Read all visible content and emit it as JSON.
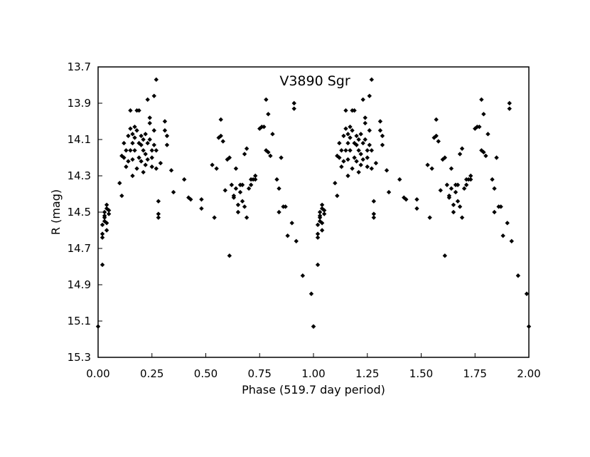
{
  "chart_data": {
    "type": "scatter",
    "title": "V3890 Sgr",
    "xlabel": "Phase (519.7 day period)",
    "ylabel": "R (mag)",
    "xlim": [
      0.0,
      2.0
    ],
    "ylim": [
      13.7,
      15.3
    ],
    "y_inverted": true,
    "grid": false,
    "legend": "none",
    "marker": "diamond",
    "marker_color": "#000000",
    "x_ticks": [
      "0.00",
      "0.25",
      "0.50",
      "0.75",
      "1.00",
      "1.25",
      "1.50",
      "1.75",
      "2.00"
    ],
    "y_ticks": [
      "13.7",
      "13.9",
      "14.1",
      "14.3",
      "14.5",
      "14.7",
      "14.9",
      "15.1",
      "15.3"
    ],
    "series": [
      {
        "points": [
          [
            0.0,
            15.13
          ],
          [
            0.02,
            14.79
          ],
          [
            0.02,
            14.64
          ],
          [
            0.02,
            14.62
          ],
          [
            0.02,
            14.57
          ],
          [
            0.03,
            14.55
          ],
          [
            0.03,
            14.52
          ],
          [
            0.03,
            14.5
          ],
          [
            0.03,
            14.53
          ],
          [
            0.04,
            14.48
          ],
          [
            0.04,
            14.46
          ],
          [
            0.04,
            14.56
          ],
          [
            0.04,
            14.6
          ],
          [
            0.05,
            14.51
          ],
          [
            0.05,
            14.49
          ],
          [
            0.1,
            14.34
          ],
          [
            0.11,
            14.19
          ],
          [
            0.11,
            14.41
          ],
          [
            0.12,
            14.12
          ],
          [
            0.12,
            14.2
          ],
          [
            0.13,
            14.25
          ],
          [
            0.13,
            14.16
          ],
          [
            0.14,
            14.22
          ],
          [
            0.14,
            14.08
          ],
          [
            0.15,
            14.04
          ],
          [
            0.15,
            14.16
          ],
          [
            0.15,
            13.94
          ],
          [
            0.16,
            14.07
          ],
          [
            0.16,
            14.12
          ],
          [
            0.16,
            14.21
          ],
          [
            0.16,
            14.3
          ],
          [
            0.17,
            14.03
          ],
          [
            0.17,
            14.09
          ],
          [
            0.17,
            14.16
          ],
          [
            0.18,
            14.26
          ],
          [
            0.18,
            13.94
          ],
          [
            0.18,
            14.05
          ],
          [
            0.19,
            14.12
          ],
          [
            0.19,
            14.2
          ],
          [
            0.19,
            13.94
          ],
          [
            0.2,
            14.08
          ],
          [
            0.2,
            14.13
          ],
          [
            0.2,
            14.22
          ],
          [
            0.21,
            14.28
          ],
          [
            0.21,
            14.16
          ],
          [
            0.21,
            14.1
          ],
          [
            0.22,
            14.07
          ],
          [
            0.22,
            14.18
          ],
          [
            0.22,
            14.24
          ],
          [
            0.23,
            13.88
          ],
          [
            0.23,
            14.12
          ],
          [
            0.23,
            14.21
          ],
          [
            0.24,
            13.98
          ],
          [
            0.24,
            14.01
          ],
          [
            0.24,
            14.1
          ],
          [
            0.25,
            14.16
          ],
          [
            0.25,
            14.25
          ],
          [
            0.25,
            14.2
          ],
          [
            0.26,
            13.86
          ],
          [
            0.26,
            14.05
          ],
          [
            0.26,
            14.13
          ],
          [
            0.27,
            14.26
          ],
          [
            0.27,
            14.16
          ],
          [
            0.27,
            13.77
          ],
          [
            0.28,
            14.51
          ],
          [
            0.28,
            14.53
          ],
          [
            0.28,
            14.44
          ],
          [
            0.29,
            14.23
          ],
          [
            0.31,
            14.0
          ],
          [
            0.31,
            14.05
          ],
          [
            0.32,
            14.13
          ],
          [
            0.32,
            14.08
          ],
          [
            0.34,
            14.27
          ],
          [
            0.35,
            14.39
          ],
          [
            0.4,
            14.32
          ],
          [
            0.42,
            14.42
          ],
          [
            0.43,
            14.43
          ],
          [
            0.48,
            14.43
          ],
          [
            0.48,
            14.48
          ],
          [
            0.53,
            14.24
          ],
          [
            0.54,
            14.53
          ],
          [
            0.55,
            14.26
          ],
          [
            0.56,
            14.09
          ],
          [
            0.57,
            13.99
          ],
          [
            0.57,
            14.08
          ],
          [
            0.58,
            14.11
          ],
          [
            0.59,
            14.38
          ],
          [
            0.6,
            14.21
          ],
          [
            0.61,
            14.2
          ],
          [
            0.61,
            14.74
          ],
          [
            0.62,
            14.35
          ],
          [
            0.63,
            14.42
          ],
          [
            0.63,
            14.41
          ],
          [
            0.64,
            14.26
          ],
          [
            0.64,
            14.37
          ],
          [
            0.65,
            14.46
          ],
          [
            0.65,
            14.5
          ],
          [
            0.66,
            14.35
          ],
          [
            0.66,
            14.39
          ],
          [
            0.67,
            14.44
          ],
          [
            0.67,
            14.35
          ],
          [
            0.68,
            14.47
          ],
          [
            0.68,
            14.18
          ],
          [
            0.69,
            14.15
          ],
          [
            0.69,
            14.53
          ],
          [
            0.7,
            14.37
          ],
          [
            0.71,
            14.32
          ],
          [
            0.71,
            14.35
          ],
          [
            0.72,
            14.32
          ],
          [
            0.73,
            14.32
          ],
          [
            0.73,
            14.3
          ],
          [
            0.75,
            14.04
          ],
          [
            0.76,
            14.03
          ],
          [
            0.77,
            14.03
          ],
          [
            0.78,
            13.88
          ],
          [
            0.78,
            14.16
          ],
          [
            0.79,
            13.96
          ],
          [
            0.79,
            14.17
          ],
          [
            0.8,
            14.19
          ],
          [
            0.81,
            14.07
          ],
          [
            0.83,
            14.32
          ],
          [
            0.84,
            14.37
          ],
          [
            0.84,
            14.5
          ],
          [
            0.85,
            14.2
          ],
          [
            0.86,
            14.47
          ],
          [
            0.87,
            14.47
          ],
          [
            0.88,
            14.63
          ],
          [
            0.9,
            14.56
          ],
          [
            0.91,
            13.9
          ],
          [
            0.91,
            13.93
          ],
          [
            0.92,
            14.66
          ],
          [
            0.95,
            14.85
          ],
          [
            0.99,
            14.95
          ],
          [
            1.0,
            15.13
          ]
        ]
      }
    ]
  }
}
